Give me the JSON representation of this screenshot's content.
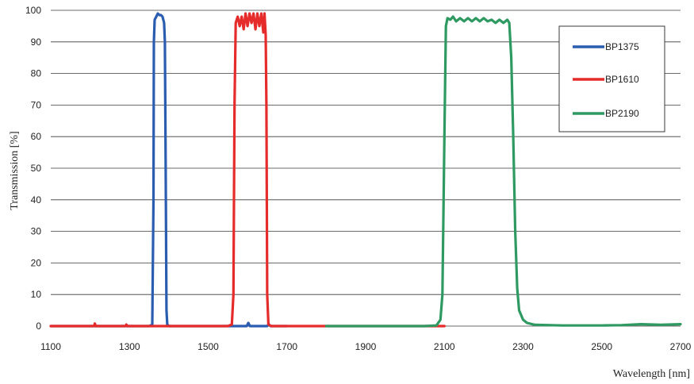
{
  "chart_data": {
    "type": "line",
    "title": "",
    "xlabel": "Wavelength [nm]",
    "ylabel": "Transmission [%]",
    "xlim": [
      1100,
      2700
    ],
    "ylim": [
      0,
      100
    ],
    "x_ticks": [
      1100,
      1300,
      1500,
      1700,
      1900,
      2100,
      2300,
      2500,
      2700
    ],
    "y_ticks": [
      0,
      10,
      20,
      30,
      40,
      50,
      60,
      70,
      80,
      90,
      100
    ],
    "grid": "horizontal",
    "legend_position": "top-right",
    "series": [
      {
        "name": "BP1375",
        "color": "#2a5cb0",
        "points": [
          [
            1100,
            0
          ],
          [
            1350,
            0
          ],
          [
            1358,
            0.5
          ],
          [
            1361,
            40
          ],
          [
            1362,
            90
          ],
          [
            1364,
            97
          ],
          [
            1368,
            98
          ],
          [
            1372,
            99
          ],
          [
            1376,
            98.5
          ],
          [
            1380,
            98.5
          ],
          [
            1384,
            98
          ],
          [
            1388,
            96
          ],
          [
            1390,
            90
          ],
          [
            1392,
            50
          ],
          [
            1394,
            5
          ],
          [
            1396,
            0.5
          ],
          [
            1400,
            0
          ],
          [
            1598,
            0
          ],
          [
            1602,
            1
          ],
          [
            1606,
            0
          ],
          [
            1650,
            0
          ],
          [
            1654,
            0.6
          ],
          [
            1658,
            0
          ],
          [
            1700,
            0
          ]
        ]
      },
      {
        "name": "BP1610",
        "color": "#e62b2b",
        "points": [
          [
            1100,
            0
          ],
          [
            1210,
            0
          ],
          [
            1212,
            0.8
          ],
          [
            1214,
            0
          ],
          [
            1290,
            0
          ],
          [
            1292,
            0.5
          ],
          [
            1294,
            0
          ],
          [
            1550,
            0
          ],
          [
            1560,
            0.5
          ],
          [
            1564,
            10
          ],
          [
            1567,
            70
          ],
          [
            1570,
            96
          ],
          [
            1575,
            98
          ],
          [
            1580,
            95
          ],
          [
            1585,
            98
          ],
          [
            1590,
            94
          ],
          [
            1595,
            99
          ],
          [
            1600,
            95
          ],
          [
            1605,
            99
          ],
          [
            1610,
            96
          ],
          [
            1615,
            99
          ],
          [
            1620,
            94
          ],
          [
            1625,
            99
          ],
          [
            1630,
            95
          ],
          [
            1635,
            99
          ],
          [
            1640,
            93
          ],
          [
            1643,
            99
          ],
          [
            1646,
            92
          ],
          [
            1648,
            70
          ],
          [
            1650,
            10
          ],
          [
            1653,
            0.5
          ],
          [
            1660,
            0
          ],
          [
            1800,
            0
          ],
          [
            2000,
            0
          ],
          [
            2100,
            0
          ]
        ]
      },
      {
        "name": "BP2190",
        "color": "#2e9a62",
        "points": [
          [
            1800,
            0
          ],
          [
            2050,
            0
          ],
          [
            2080,
            0.2
          ],
          [
            2090,
            2
          ],
          [
            2095,
            10
          ],
          [
            2100,
            60
          ],
          [
            2104,
            95
          ],
          [
            2108,
            97.5
          ],
          [
            2115,
            97
          ],
          [
            2122,
            98
          ],
          [
            2130,
            96.5
          ],
          [
            2140,
            97.5
          ],
          [
            2150,
            96.5
          ],
          [
            2160,
            97.5
          ],
          [
            2170,
            96.5
          ],
          [
            2180,
            97.5
          ],
          [
            2190,
            96.5
          ],
          [
            2200,
            97.5
          ],
          [
            2210,
            96.5
          ],
          [
            2220,
            97
          ],
          [
            2230,
            96
          ],
          [
            2240,
            97
          ],
          [
            2250,
            96
          ],
          [
            2260,
            97
          ],
          [
            2265,
            96
          ],
          [
            2270,
            85
          ],
          [
            2275,
            60
          ],
          [
            2280,
            30
          ],
          [
            2285,
            12
          ],
          [
            2290,
            5
          ],
          [
            2300,
            2
          ],
          [
            2310,
            1
          ],
          [
            2330,
            0.4
          ],
          [
            2400,
            0.2
          ],
          [
            2500,
            0.2
          ],
          [
            2550,
            0.3
          ],
          [
            2600,
            0.6
          ],
          [
            2650,
            0.4
          ],
          [
            2700,
            0.6
          ]
        ]
      }
    ]
  }
}
